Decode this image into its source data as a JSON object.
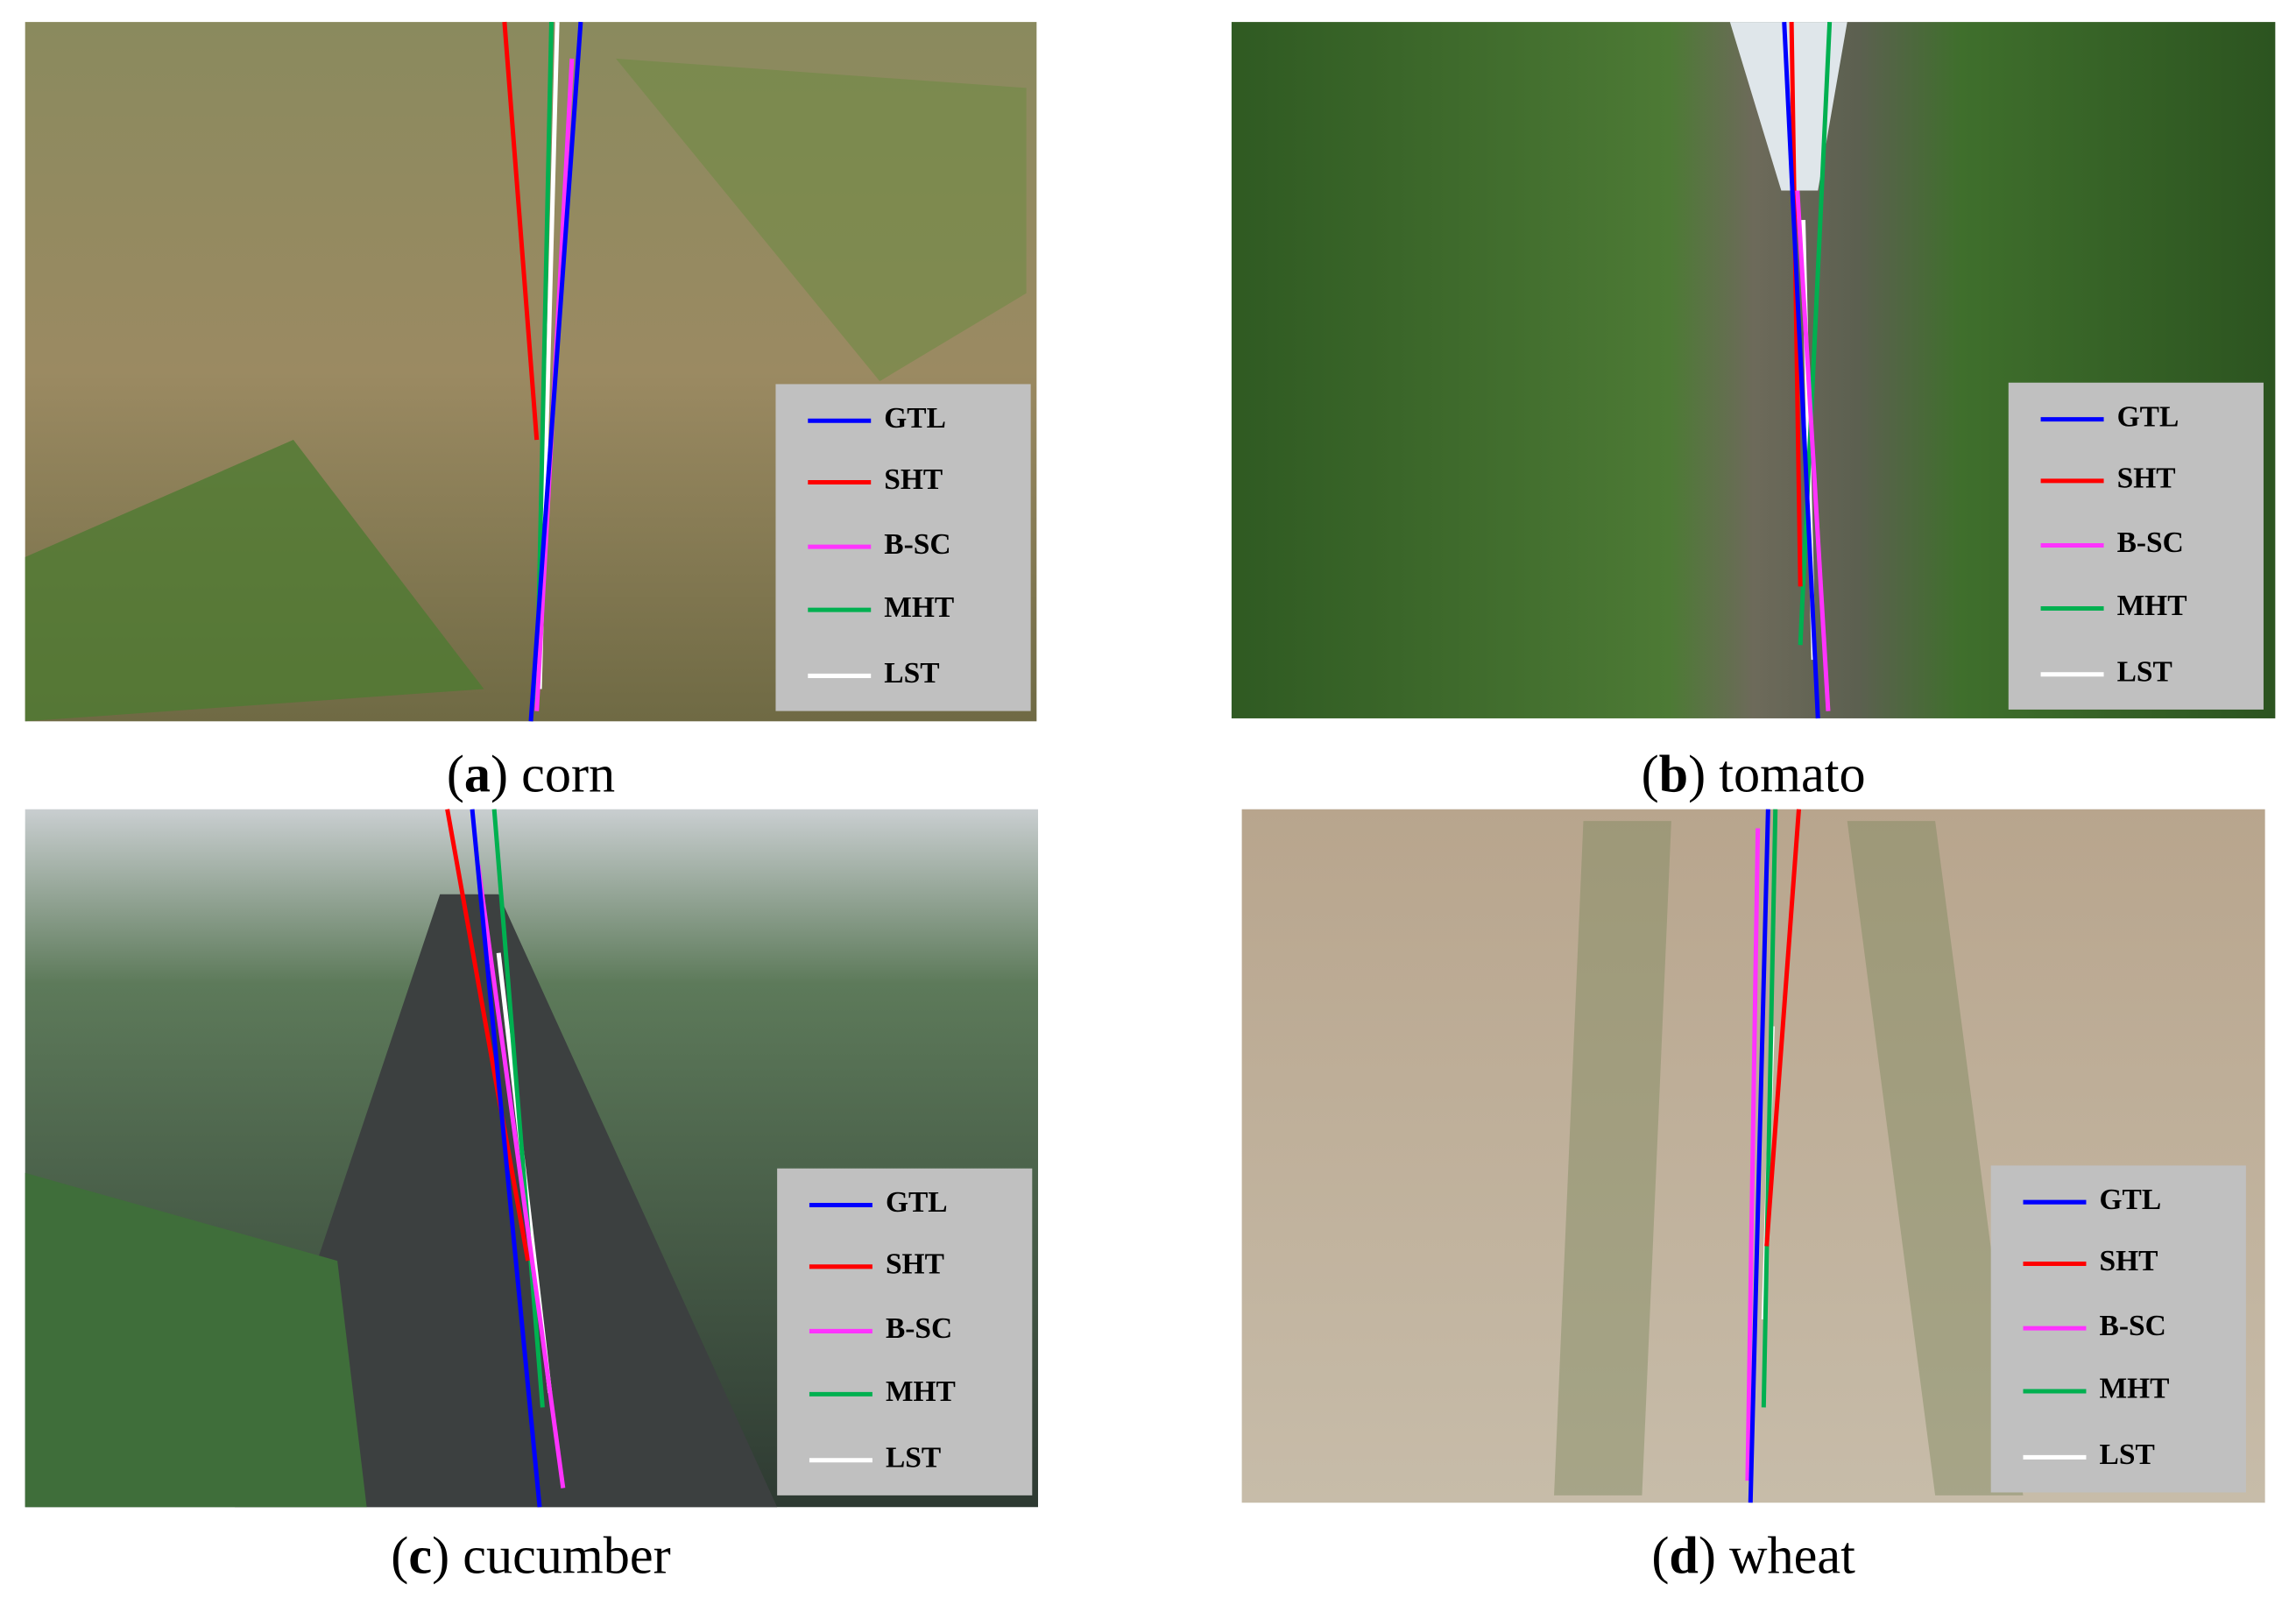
{
  "legend": [
    {
      "label": "GTL",
      "color": "#0000ff"
    },
    {
      "label": "SHT",
      "color": "#ff0000"
    },
    {
      "label": "B-SC",
      "color": "#ff33ff"
    },
    {
      "label": "MHT",
      "color": "#00b050"
    },
    {
      "label": "LST",
      "color": "#ffffff"
    }
  ],
  "panels": [
    {
      "open": "(",
      "letter": "a",
      "rest": ") corn"
    },
    {
      "open": "(",
      "letter": "b",
      "rest": ") tomato"
    },
    {
      "open": "(",
      "letter": "c",
      "rest": ") cucumber"
    },
    {
      "open": "(",
      "letter": "d",
      "rest": ") wheat"
    }
  ]
}
